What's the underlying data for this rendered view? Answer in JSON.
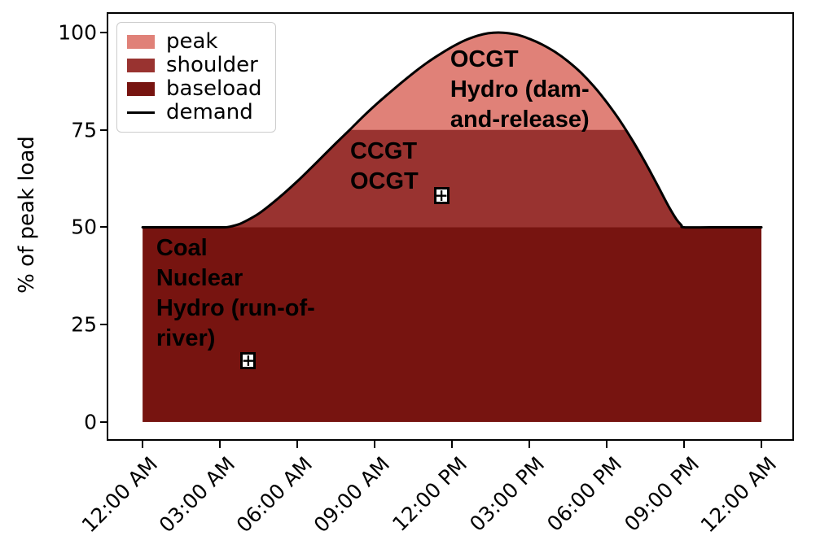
{
  "chart_data": {
    "type": "area",
    "title": "",
    "xlabel": "",
    "ylabel": "% of peak load",
    "x_unit": "hours",
    "xlim": [
      -1.33,
      25.2
    ],
    "ylim": [
      -4.4,
      104.8
    ],
    "grid": false,
    "legend_position": "upper-left",
    "x_ticks": [
      {
        "t": 0,
        "label": "12:00 AM"
      },
      {
        "t": 3,
        "label": "03:00 AM"
      },
      {
        "t": 6,
        "label": "06:00 AM"
      },
      {
        "t": 9,
        "label": "09:00 AM"
      },
      {
        "t": 12,
        "label": "12:00 PM"
      },
      {
        "t": 15,
        "label": "03:00 PM"
      },
      {
        "t": 18,
        "label": "06:00 PM"
      },
      {
        "t": 21,
        "label": "09:00 PM"
      },
      {
        "t": 24,
        "label": "12:00 AM"
      }
    ],
    "y_ticks": [
      {
        "p": 0,
        "label": "0"
      },
      {
        "p": 25,
        "label": "25"
      },
      {
        "p": 50,
        "label": "50"
      },
      {
        "p": 75,
        "label": "75"
      },
      {
        "p": 100,
        "label": "100"
      }
    ],
    "demand_series": {
      "name": "demand",
      "color": "#000000",
      "line_width": 3,
      "points": [
        [
          0,
          50
        ],
        [
          1,
          50
        ],
        [
          2,
          50
        ],
        [
          3,
          50
        ],
        [
          3.3,
          50.05
        ],
        [
          3.7,
          50.7
        ],
        [
          4,
          51.6
        ],
        [
          4.5,
          53.5
        ],
        [
          5,
          56
        ],
        [
          5.5,
          58.8
        ],
        [
          6,
          61.8
        ],
        [
          6.5,
          65
        ],
        [
          7,
          68.3
        ],
        [
          7.5,
          71.6
        ],
        [
          8,
          74.8
        ],
        [
          8.5,
          78.1
        ],
        [
          9,
          81.2
        ],
        [
          9.5,
          84.1
        ],
        [
          10,
          86.9
        ],
        [
          10.5,
          89.6
        ],
        [
          11,
          92.1
        ],
        [
          11.5,
          94.3
        ],
        [
          12,
          96.3
        ],
        [
          12.5,
          98
        ],
        [
          13,
          99.2
        ],
        [
          13.4,
          99.8
        ],
        [
          13.8,
          100
        ],
        [
          14.2,
          99.8
        ],
        [
          14.6,
          99.3
        ],
        [
          15,
          98.4
        ],
        [
          15.5,
          96.9
        ],
        [
          16,
          95
        ],
        [
          16.5,
          92.6
        ],
        [
          17,
          89.7
        ],
        [
          17.5,
          86.2
        ],
        [
          18,
          82.1
        ],
        [
          18.5,
          77.5
        ],
        [
          19,
          72.3
        ],
        [
          19.5,
          66.6
        ],
        [
          20,
          60.4
        ],
        [
          20.4,
          55.4
        ],
        [
          20.7,
          52.1
        ],
        [
          20.9,
          50.5
        ],
        [
          21,
          50
        ],
        [
          22,
          50
        ],
        [
          23,
          50
        ],
        [
          24,
          50
        ]
      ]
    },
    "bands": [
      {
        "name": "baseload",
        "from_pct": 0,
        "to_pct": 50,
        "color": "#771410"
      },
      {
        "name": "shoulder",
        "from_pct": 50,
        "to_pct": 75,
        "color": "#993330"
      },
      {
        "name": "peak",
        "from_pct": 75,
        "to_pct": 100,
        "color": "#e08178"
      }
    ],
    "legend": [
      {
        "label": "peak",
        "type": "patch",
        "color": "#e08178"
      },
      {
        "label": "shoulder",
        "type": "patch",
        "color": "#993330"
      },
      {
        "label": "baseload",
        "type": "patch",
        "color": "#771410"
      },
      {
        "label": "demand",
        "type": "line",
        "color": "#000000"
      }
    ],
    "annotations": [
      {
        "name": "peak-technologies",
        "t": 11.93,
        "p": 96.9,
        "lines": [
          "OCGT",
          "Hydro (dam-",
          "and-release)"
        ]
      },
      {
        "name": "shoulder-technologies",
        "t": 8.05,
        "p": 73.3,
        "lines": [
          "CCGT",
          "OCGT"
        ]
      },
      {
        "name": "baseload-technologies",
        "t": 0.53,
        "p": 48.4,
        "lines": [
          "Coal",
          "Nuclear",
          "Hydro (run-of-",
          "river)"
        ]
      }
    ],
    "markers": [
      {
        "name": "shoulder-handle",
        "t": 11.59,
        "p": 58.2,
        "symbol": "+"
      },
      {
        "name": "baseload-handle",
        "t": 4.1,
        "p": 15.85,
        "symbol": "+"
      }
    ]
  }
}
